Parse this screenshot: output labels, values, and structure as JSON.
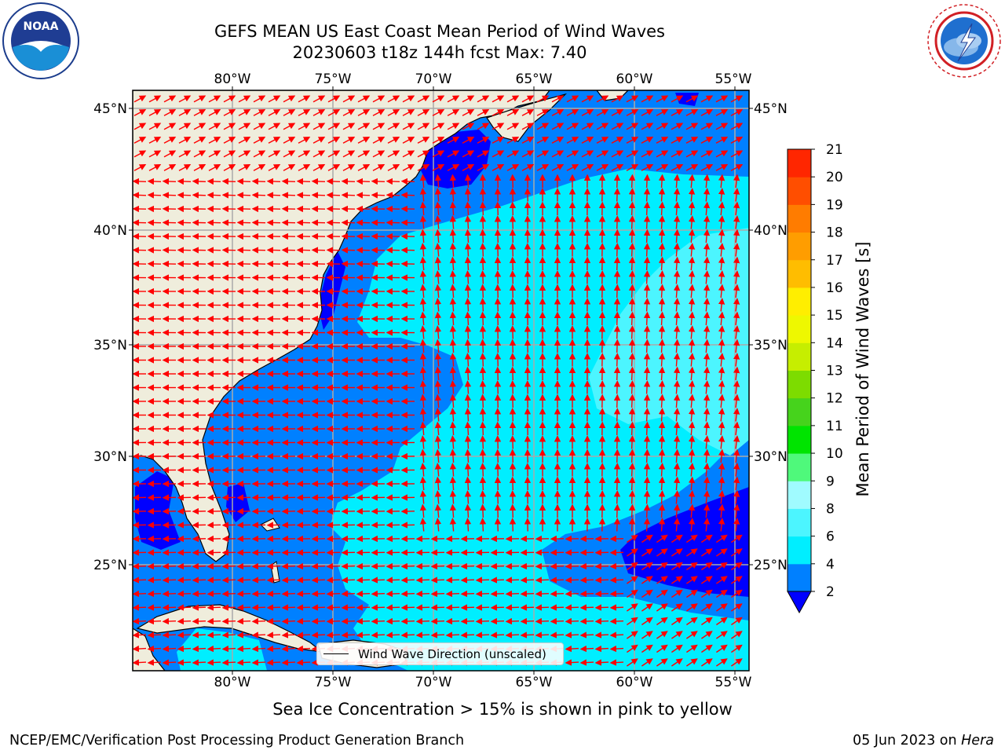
{
  "title": {
    "line1": "GEFS MEAN US East Coast Mean Period of Wind Waves",
    "line2": "20230603 t18z 144h fcst   Max: 7.40"
  },
  "logos": {
    "left": "NOAA",
    "right": "NATIONAL WEATHER SERVICE"
  },
  "map": {
    "lon_labels": [
      "80°W",
      "75°W",
      "70°W",
      "65°W",
      "60°W",
      "55°W"
    ],
    "lat_labels": [
      "45°N",
      "40°N",
      "35°N",
      "30°N",
      "25°N"
    ],
    "extent": {
      "lon": [
        -85,
        -54.4
      ],
      "lat": [
        20.5,
        45.8
      ]
    },
    "legend_label": "Wind Wave Direction (unscaled)",
    "arrow_color": "#ff0000",
    "land_color": "#efeddc",
    "grid": true
  },
  "colorbar": {
    "label": "Mean Period of Wind Waves [s]",
    "ticks": [
      "2",
      "4",
      "6",
      "8",
      "9",
      "10",
      "11",
      "12",
      "13",
      "14",
      "15",
      "16",
      "17",
      "18",
      "19",
      "20",
      "21"
    ],
    "colors": [
      "#0080ff",
      "#00eeff",
      "#4cf5ff",
      "#a0fbff",
      "#4ff97b",
      "#00e400",
      "#46d31c",
      "#7ddc00",
      "#c6ee00",
      "#eef800",
      "#ffee00",
      "#ffbd00",
      "#ff9d00",
      "#ff7c00",
      "#ff4e00",
      "#ff2600"
    ],
    "extend_color": "#0000ff"
  },
  "subtitle": "Sea Ice Concentration > 15% is shown in pink to yellow",
  "footer": {
    "left": "NCEP/EMC/Verification Post Processing Product Generation Branch",
    "right_prefix": "05 Jun 2023 on ",
    "right_system": "Hera"
  }
}
